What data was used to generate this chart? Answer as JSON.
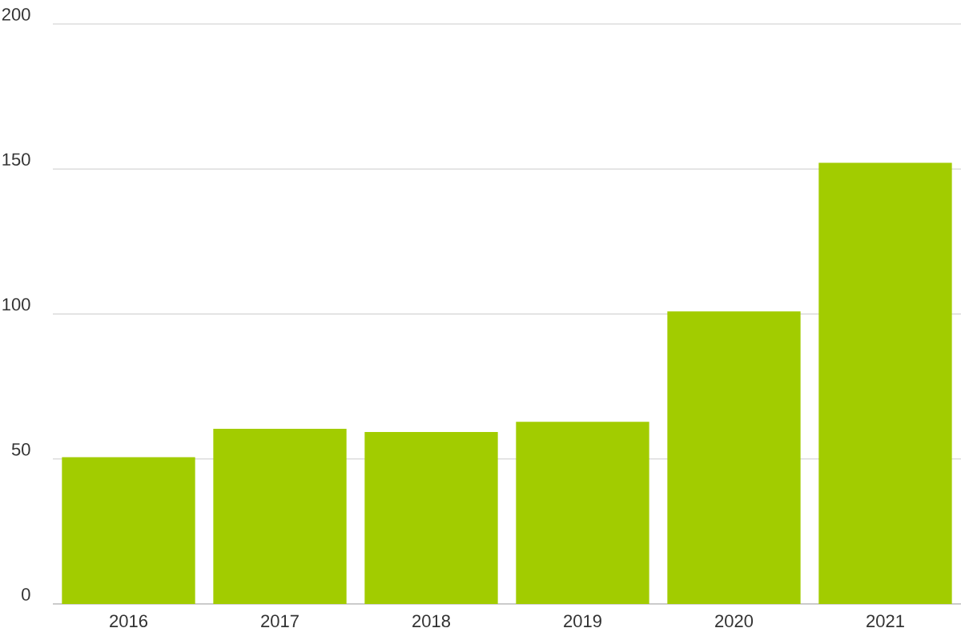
{
  "chart_data": {
    "type": "bar",
    "categories": [
      "2016",
      "2017",
      "2018",
      "2019",
      "2020",
      "2021"
    ],
    "values": [
      50.6,
      60.4,
      59.3,
      62.8,
      100.9,
      152.1
    ],
    "color": "#a2cc00",
    "ylim": [
      0,
      200
    ],
    "yticks": [
      0,
      50,
      100,
      150,
      200
    ],
    "grid": "y"
  }
}
